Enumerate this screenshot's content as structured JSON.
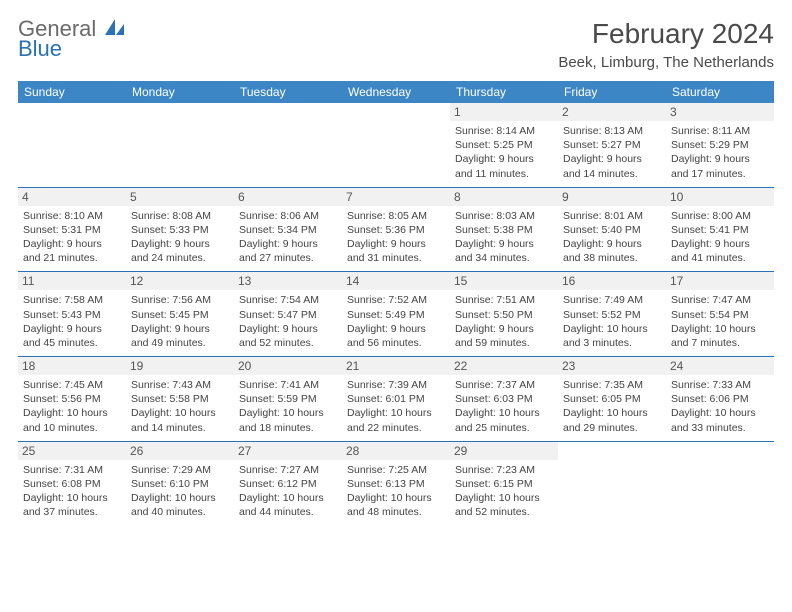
{
  "logo": {
    "line1": "General",
    "line2": "Blue"
  },
  "title": "February 2024",
  "location": "Beek, Limburg, The Netherlands",
  "colors": {
    "header_bg": "#3d86c6",
    "header_text": "#ffffff",
    "rule": "#2a71b8",
    "daynum_bg": "#f1f1f1",
    "text": "#444444",
    "logo_gray": "#6a6a6a",
    "logo_blue": "#2a71b8"
  },
  "daysOfWeek": [
    "Sunday",
    "Monday",
    "Tuesday",
    "Wednesday",
    "Thursday",
    "Friday",
    "Saturday"
  ],
  "weeks": [
    [
      null,
      null,
      null,
      null,
      {
        "n": "1",
        "sr": "8:14 AM",
        "ss": "5:25 PM",
        "dl": "9 hours and 11 minutes."
      },
      {
        "n": "2",
        "sr": "8:13 AM",
        "ss": "5:27 PM",
        "dl": "9 hours and 14 minutes."
      },
      {
        "n": "3",
        "sr": "8:11 AM",
        "ss": "5:29 PM",
        "dl": "9 hours and 17 minutes."
      }
    ],
    [
      {
        "n": "4",
        "sr": "8:10 AM",
        "ss": "5:31 PM",
        "dl": "9 hours and 21 minutes."
      },
      {
        "n": "5",
        "sr": "8:08 AM",
        "ss": "5:33 PM",
        "dl": "9 hours and 24 minutes."
      },
      {
        "n": "6",
        "sr": "8:06 AM",
        "ss": "5:34 PM",
        "dl": "9 hours and 27 minutes."
      },
      {
        "n": "7",
        "sr": "8:05 AM",
        "ss": "5:36 PM",
        "dl": "9 hours and 31 minutes."
      },
      {
        "n": "8",
        "sr": "8:03 AM",
        "ss": "5:38 PM",
        "dl": "9 hours and 34 minutes."
      },
      {
        "n": "9",
        "sr": "8:01 AM",
        "ss": "5:40 PM",
        "dl": "9 hours and 38 minutes."
      },
      {
        "n": "10",
        "sr": "8:00 AM",
        "ss": "5:41 PM",
        "dl": "9 hours and 41 minutes."
      }
    ],
    [
      {
        "n": "11",
        "sr": "7:58 AM",
        "ss": "5:43 PM",
        "dl": "9 hours and 45 minutes."
      },
      {
        "n": "12",
        "sr": "7:56 AM",
        "ss": "5:45 PM",
        "dl": "9 hours and 49 minutes."
      },
      {
        "n": "13",
        "sr": "7:54 AM",
        "ss": "5:47 PM",
        "dl": "9 hours and 52 minutes."
      },
      {
        "n": "14",
        "sr": "7:52 AM",
        "ss": "5:49 PM",
        "dl": "9 hours and 56 minutes."
      },
      {
        "n": "15",
        "sr": "7:51 AM",
        "ss": "5:50 PM",
        "dl": "9 hours and 59 minutes."
      },
      {
        "n": "16",
        "sr": "7:49 AM",
        "ss": "5:52 PM",
        "dl": "10 hours and 3 minutes."
      },
      {
        "n": "17",
        "sr": "7:47 AM",
        "ss": "5:54 PM",
        "dl": "10 hours and 7 minutes."
      }
    ],
    [
      {
        "n": "18",
        "sr": "7:45 AM",
        "ss": "5:56 PM",
        "dl": "10 hours and 10 minutes."
      },
      {
        "n": "19",
        "sr": "7:43 AM",
        "ss": "5:58 PM",
        "dl": "10 hours and 14 minutes."
      },
      {
        "n": "20",
        "sr": "7:41 AM",
        "ss": "5:59 PM",
        "dl": "10 hours and 18 minutes."
      },
      {
        "n": "21",
        "sr": "7:39 AM",
        "ss": "6:01 PM",
        "dl": "10 hours and 22 minutes."
      },
      {
        "n": "22",
        "sr": "7:37 AM",
        "ss": "6:03 PM",
        "dl": "10 hours and 25 minutes."
      },
      {
        "n": "23",
        "sr": "7:35 AM",
        "ss": "6:05 PM",
        "dl": "10 hours and 29 minutes."
      },
      {
        "n": "24",
        "sr": "7:33 AM",
        "ss": "6:06 PM",
        "dl": "10 hours and 33 minutes."
      }
    ],
    [
      {
        "n": "25",
        "sr": "7:31 AM",
        "ss": "6:08 PM",
        "dl": "10 hours and 37 minutes."
      },
      {
        "n": "26",
        "sr": "7:29 AM",
        "ss": "6:10 PM",
        "dl": "10 hours and 40 minutes."
      },
      {
        "n": "27",
        "sr": "7:27 AM",
        "ss": "6:12 PM",
        "dl": "10 hours and 44 minutes."
      },
      {
        "n": "28",
        "sr": "7:25 AM",
        "ss": "6:13 PM",
        "dl": "10 hours and 48 minutes."
      },
      {
        "n": "29",
        "sr": "7:23 AM",
        "ss": "6:15 PM",
        "dl": "10 hours and 52 minutes."
      },
      null,
      null
    ]
  ],
  "labels": {
    "sunrise": "Sunrise:",
    "sunset": "Sunset:",
    "daylight": "Daylight:"
  }
}
